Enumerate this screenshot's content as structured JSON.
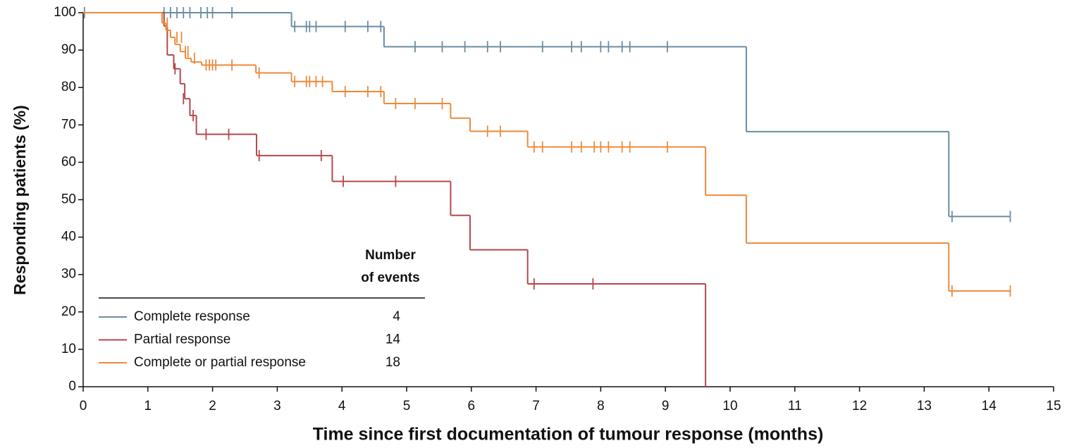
{
  "chart_data": {
    "type": "step",
    "xlabel": "Time since first documentation of tumour response (months)",
    "ylabel": "Responding patients (%)",
    "xlim": [
      0,
      15
    ],
    "xticks": [
      0,
      1,
      2,
      3,
      4,
      5,
      6,
      7,
      8,
      9,
      10,
      11,
      12,
      13,
      14,
      15
    ],
    "ylim": [
      0,
      100
    ],
    "yticks": [
      0,
      10,
      20,
      30,
      40,
      50,
      60,
      70,
      80,
      90,
      100
    ],
    "legend_title": [
      "Number",
      "of events"
    ],
    "series": [
      {
        "name": "Complete response",
        "color": "#6a8ca1",
        "events": 4,
        "x": [
          0,
          3.22,
          4.65,
          10.25,
          13.38,
          14.33
        ],
        "values": [
          100,
          96.3,
          90.9,
          68.2,
          45.5,
          45.5
        ],
        "censor_x": [
          0.02,
          1.25,
          1.35,
          1.45,
          1.55,
          1.65,
          1.82,
          1.92,
          2.0,
          2.3,
          3.27,
          3.45,
          3.5,
          3.6,
          4.05,
          4.4,
          4.6,
          5.13,
          5.55,
          5.9,
          6.25,
          6.45,
          7.1,
          7.55,
          7.7,
          8.0,
          8.12,
          8.33,
          8.45,
          9.03,
          13.43,
          14.33
        ],
        "censor_values": [
          100,
          100,
          100,
          100,
          100,
          100,
          100,
          100,
          100,
          100,
          96.3,
          96.3,
          96.3,
          96.3,
          96.3,
          96.3,
          96.3,
          90.9,
          90.9,
          90.9,
          90.9,
          90.9,
          90.9,
          90.9,
          90.9,
          90.9,
          90.9,
          90.9,
          90.9,
          90.9,
          45.5,
          45.5
        ]
      },
      {
        "name": "Partial response",
        "color": "#b5474d",
        "events": 14,
        "x": [
          0,
          1.25,
          1.3,
          1.4,
          1.5,
          1.57,
          1.65,
          1.75,
          2.68,
          3.85,
          5.68,
          5.98,
          6.87,
          9.62
        ],
        "values": [
          100,
          96.4,
          88.7,
          85,
          81,
          77,
          72.5,
          67.5,
          61.8,
          54.9,
          45.8,
          36.6,
          27.5,
          0
        ],
        "censor_x": [
          1.42,
          1.55,
          1.7,
          1.9,
          2.25,
          2.72,
          3.68,
          4.02,
          4.83,
          6.97,
          7.88
        ],
        "censor_values": [
          85,
          77,
          72.5,
          67.5,
          67.5,
          61.8,
          61.8,
          54.9,
          54.9,
          27.5,
          27.5
        ]
      },
      {
        "name": "Complete or partial response",
        "color": "#ec8a3c",
        "events": 18,
        "x": [
          0,
          1.22,
          1.28,
          1.35,
          1.42,
          1.5,
          1.58,
          1.67,
          1.83,
          2.67,
          3.22,
          3.85,
          4.65,
          5.68,
          5.98,
          6.87,
          9.62,
          10.25,
          13.38,
          14.33
        ],
        "values": [
          100,
          97.2,
          95.3,
          93.4,
          91.5,
          89.6,
          87.8,
          86.8,
          86,
          83.9,
          81.6,
          78.9,
          75.7,
          71.8,
          68.3,
          64.1,
          51.2,
          38.4,
          25.6,
          25.6
        ],
        "censor_x": [
          1.3,
          1.45,
          1.52,
          1.58,
          1.62,
          1.72,
          1.9,
          1.95,
          2.0,
          2.05,
          2.3,
          2.72,
          3.27,
          3.45,
          3.5,
          3.6,
          3.7,
          4.05,
          4.4,
          4.6,
          4.83,
          5.13,
          5.55,
          6.25,
          6.45,
          6.97,
          7.1,
          7.55,
          7.7,
          7.9,
          8.0,
          8.12,
          8.33,
          8.45,
          9.03,
          13.43,
          14.33
        ],
        "censor_values": [
          97.2,
          93.4,
          93.4,
          89.6,
          89.6,
          87.8,
          86,
          86,
          86,
          86,
          86,
          83.9,
          81.6,
          81.6,
          81.6,
          81.6,
          81.6,
          78.9,
          78.9,
          78.9,
          75.7,
          75.7,
          75.7,
          68.3,
          68.3,
          64.1,
          64.1,
          64.1,
          64.1,
          64.1,
          64.1,
          64.1,
          64.1,
          64.1,
          64.1,
          25.6,
          25.6
        ]
      }
    ]
  }
}
